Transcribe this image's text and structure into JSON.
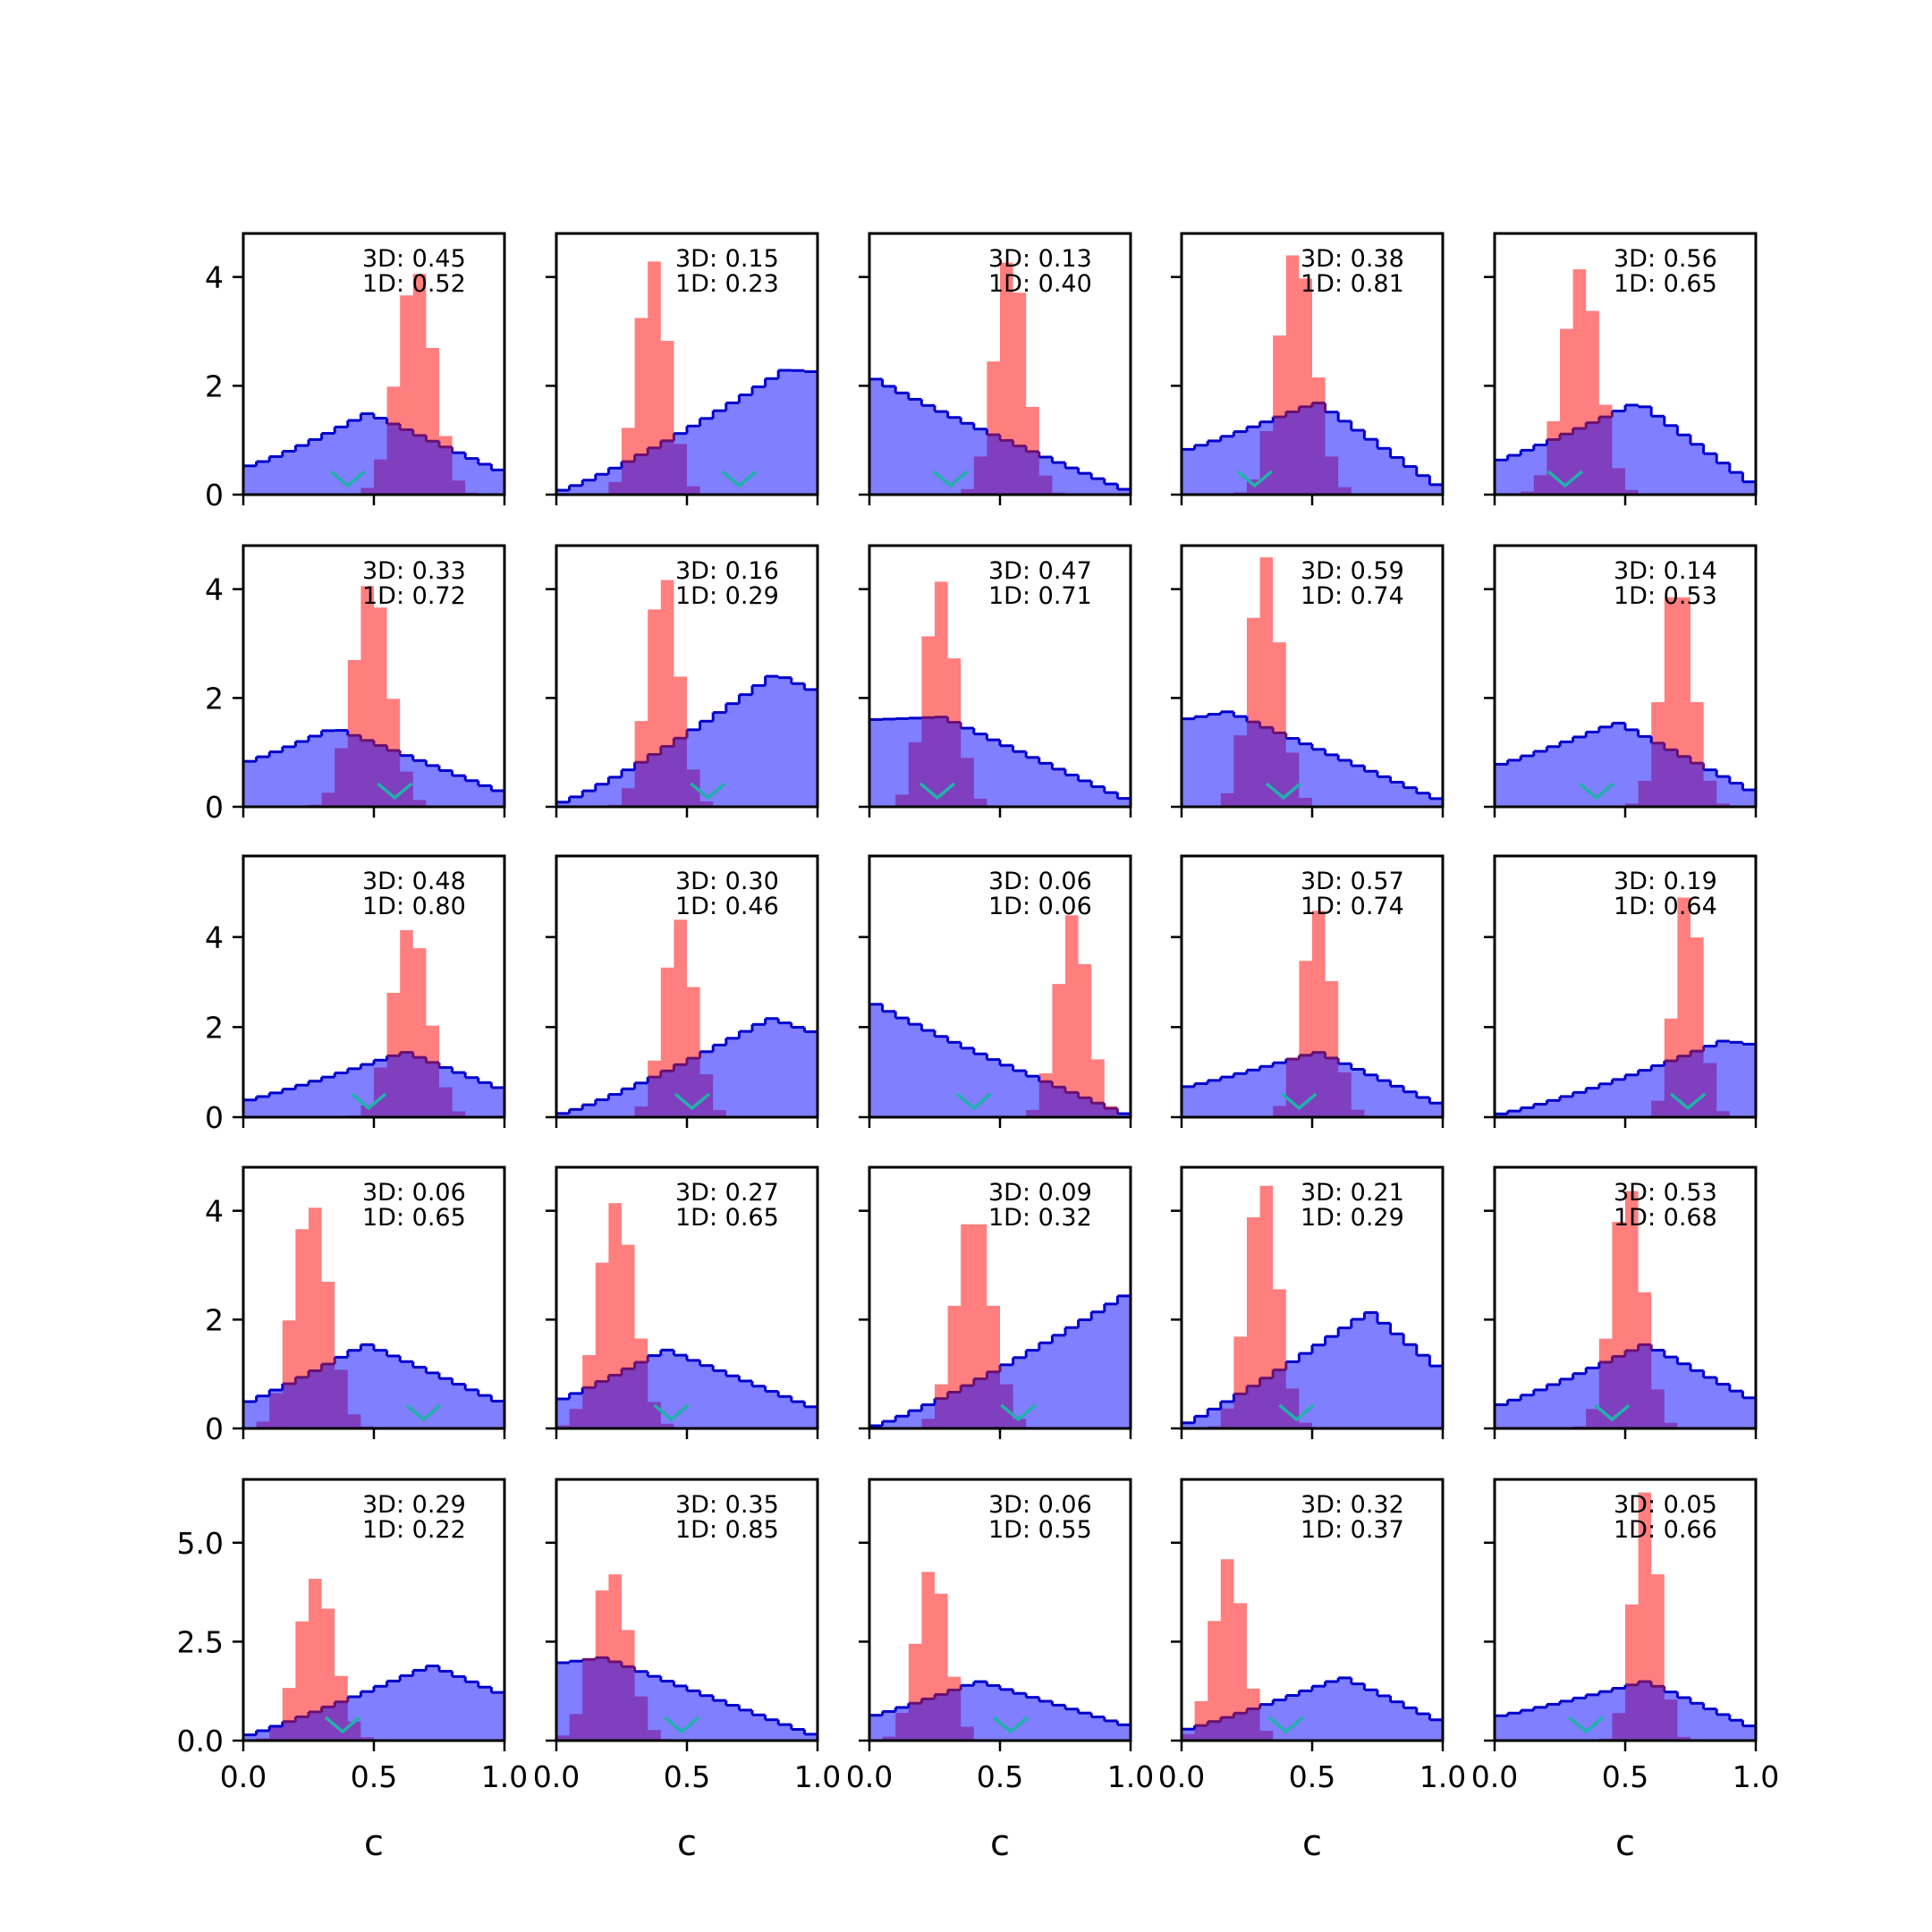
{
  "colors": {
    "hist_3d_fill": "#0000ff",
    "hist_3d_fill_opacity": 0.5,
    "hist_3d_edge": "#0000cc",
    "hist_1d_fill": "#ff0000",
    "hist_1d_fill_opacity": 0.5,
    "overlap_edge": "#6a1070",
    "marker": "#20b2aa"
  },
  "layout": {
    "rows": 5,
    "cols": 5,
    "x_tick_labels": [
      "0.0",
      "0.5",
      "1.0"
    ],
    "x_ticks": [
      0.0,
      0.5,
      1.0
    ],
    "xlabel": "c",
    "row_y_ticks": [
      {
        "ticks": [
          0,
          2,
          4
        ],
        "labels": [
          "0",
          "2",
          "4"
        ],
        "ylim": [
          0,
          4.8
        ]
      },
      {
        "ticks": [
          0,
          2,
          4
        ],
        "labels": [
          "0",
          "2",
          "4"
        ],
        "ylim": [
          0,
          4.8
        ]
      },
      {
        "ticks": [
          0,
          2,
          4
        ],
        "labels": [
          "0",
          "2",
          "4"
        ],
        "ylim": [
          0,
          5.8
        ]
      },
      {
        "ticks": [
          0,
          2,
          4
        ],
        "labels": [
          "0",
          "2",
          "4"
        ],
        "ylim": [
          0,
          4.8
        ]
      },
      {
        "ticks": [
          0.0,
          2.5,
          5.0
        ],
        "labels": [
          "0.0",
          "2.5",
          "5.0"
        ],
        "ylim": [
          0,
          6.6
        ]
      }
    ]
  },
  "chart_data": {
    "type": "histogram-grid",
    "xlim": [
      0,
      1
    ],
    "xlabel": "c",
    "panels": [
      {
        "row": 0,
        "col": 0,
        "annotation_3d": "3D: 0.45",
        "annotation_1d": "1D: 0.52",
        "wide_shape": "ramp-up",
        "wide_peak": 0.48,
        "wide_max": 1.5,
        "wide_start": 0.5,
        "wide_end": 0.4,
        "narrow_center": 0.66,
        "narrow_sd": 0.07,
        "narrow_max": 4.15,
        "marker_x": 0.4
      },
      {
        "row": 0,
        "col": 1,
        "annotation_3d": "3D: 0.15",
        "annotation_1d": "1D: 0.23",
        "wide_shape": "ramp-up",
        "wide_peak": 0.88,
        "wide_max": 2.3,
        "wide_start": 0.05,
        "wide_end": 2.25,
        "narrow_center": 0.37,
        "narrow_sd": 0.06,
        "narrow_max": 4.3,
        "marker_x": 0.7
      },
      {
        "row": 0,
        "col": 2,
        "annotation_3d": "3D: 0.13",
        "annotation_1d": "1D: 0.40",
        "wide_shape": "ramp-down",
        "wide_peak": 0.0,
        "wide_max": 2.2,
        "wide_start": 2.2,
        "wide_end": 0.05,
        "narrow_center": 0.54,
        "narrow_sd": 0.06,
        "narrow_max": 4.4,
        "marker_x": 0.31
      },
      {
        "row": 0,
        "col": 3,
        "annotation_3d": "3D: 0.38",
        "annotation_1d": "1D: 0.81",
        "wide_shape": "peak",
        "wide_peak": 0.52,
        "wide_max": 1.7,
        "wide_start": 0.8,
        "wide_end": 0.1,
        "narrow_center": 0.44,
        "narrow_sd": 0.07,
        "narrow_max": 4.5,
        "marker_x": 0.28
      },
      {
        "row": 0,
        "col": 4,
        "annotation_3d": "3D: 0.56",
        "annotation_1d": "1D: 0.65",
        "wide_shape": "peak",
        "wide_peak": 0.55,
        "wide_max": 1.7,
        "wide_start": 0.6,
        "wide_end": 0.15,
        "narrow_center": 0.33,
        "narrow_sd": 0.07,
        "narrow_max": 4.15,
        "marker_x": 0.27
      },
      {
        "row": 1,
        "col": 0,
        "annotation_3d": "3D: 0.33",
        "annotation_1d": "1D: 0.72",
        "wide_shape": "peak",
        "wide_peak": 0.35,
        "wide_max": 1.45,
        "wide_start": 0.8,
        "wide_end": 0.25,
        "narrow_center": 0.49,
        "narrow_sd": 0.07,
        "narrow_max": 4.15,
        "marker_x": 0.58
      },
      {
        "row": 1,
        "col": 1,
        "annotation_3d": "3D: 0.16",
        "annotation_1d": "1D: 0.29",
        "wide_shape": "ramp-up",
        "wide_peak": 0.84,
        "wide_max": 2.45,
        "wide_start": 0.05,
        "wide_end": 2.1,
        "narrow_center": 0.41,
        "narrow_sd": 0.06,
        "narrow_max": 4.3,
        "marker_x": 0.58
      },
      {
        "row": 1,
        "col": 2,
        "annotation_3d": "3D: 0.47",
        "annotation_1d": "1D: 0.71",
        "wide_shape": "peak",
        "wide_peak": 0.28,
        "wide_max": 1.65,
        "wide_start": 1.6,
        "wide_end": 0.1,
        "narrow_center": 0.27,
        "narrow_sd": 0.06,
        "narrow_max": 4.15,
        "marker_x": 0.26
      },
      {
        "row": 1,
        "col": 3,
        "annotation_3d": "3D: 0.59",
        "annotation_1d": "1D: 0.74",
        "wide_shape": "peak",
        "wide_peak": 0.18,
        "wide_max": 1.75,
        "wide_start": 1.6,
        "wide_end": 0.1,
        "narrow_center": 0.32,
        "narrow_sd": 0.06,
        "narrow_max": 4.6,
        "marker_x": 0.39
      },
      {
        "row": 1,
        "col": 4,
        "annotation_3d": "3D: 0.14",
        "annotation_1d": "1D: 0.53",
        "wide_shape": "peak",
        "wide_peak": 0.47,
        "wide_max": 1.55,
        "wide_start": 0.75,
        "wide_end": 0.25,
        "narrow_center": 0.7,
        "narrow_sd": 0.06,
        "narrow_max": 4.2,
        "marker_x": 0.39
      },
      {
        "row": 2,
        "col": 0,
        "annotation_3d": "3D: 0.48",
        "annotation_1d": "1D: 0.80",
        "wide_shape": "peak",
        "wide_peak": 0.62,
        "wide_max": 1.45,
        "wide_start": 0.35,
        "wide_end": 0.6,
        "narrow_center": 0.64,
        "narrow_sd": 0.07,
        "narrow_max": 4.25,
        "marker_x": 0.48
      },
      {
        "row": 2,
        "col": 1,
        "annotation_3d": "3D: 0.30",
        "annotation_1d": "1D: 0.46",
        "wide_shape": "ramp-up",
        "wide_peak": 0.82,
        "wide_max": 2.2,
        "wide_start": 0.05,
        "wide_end": 1.85,
        "narrow_center": 0.47,
        "narrow_sd": 0.06,
        "narrow_max": 4.4,
        "marker_x": 0.52
      },
      {
        "row": 2,
        "col": 2,
        "annotation_3d": "3D: 0.06",
        "annotation_1d": "1D: 0.06",
        "wide_shape": "ramp-down",
        "wide_peak": 0.0,
        "wide_max": 2.6,
        "wide_start": 2.6,
        "wide_end": 0.02,
        "narrow_center": 0.78,
        "narrow_sd": 0.06,
        "narrow_max": 4.5,
        "marker_x": 0.4
      },
      {
        "row": 2,
        "col": 3,
        "annotation_3d": "3D: 0.57",
        "annotation_1d": "1D: 0.74",
        "wide_shape": "peak",
        "wide_peak": 0.52,
        "wide_max": 1.45,
        "wide_start": 0.65,
        "wide_end": 0.25,
        "narrow_center": 0.52,
        "narrow_sd": 0.06,
        "narrow_max": 4.6,
        "marker_x": 0.45
      },
      {
        "row": 2,
        "col": 4,
        "annotation_3d": "3D: 0.19",
        "annotation_1d": "1D: 0.64",
        "wide_shape": "ramp-up",
        "wide_peak": 0.88,
        "wide_max": 1.7,
        "wide_start": 0.05,
        "wide_end": 1.6,
        "narrow_center": 0.74,
        "narrow_sd": 0.05,
        "narrow_max": 5.1,
        "marker_x": 0.74
      },
      {
        "row": 3,
        "col": 0,
        "annotation_3d": "3D: 0.06",
        "annotation_1d": "1D: 0.65",
        "wide_shape": "peak",
        "wide_peak": 0.47,
        "wide_max": 1.55,
        "wide_start": 0.45,
        "wide_end": 0.45,
        "narrow_center": 0.26,
        "narrow_sd": 0.07,
        "narrow_max": 4.15,
        "marker_x": 0.69
      },
      {
        "row": 3,
        "col": 1,
        "annotation_3d": "3D: 0.27",
        "annotation_1d": "1D: 0.65",
        "wide_shape": "peak",
        "wide_peak": 0.42,
        "wide_max": 1.45,
        "wide_start": 0.5,
        "wide_end": 0.35,
        "narrow_center": 0.23,
        "narrow_sd": 0.07,
        "narrow_max": 4.15,
        "marker_x": 0.44
      },
      {
        "row": 3,
        "col": 2,
        "annotation_3d": "3D: 0.09",
        "annotation_1d": "1D: 0.32",
        "wide_shape": "ramp-up",
        "wide_peak": 0.98,
        "wide_max": 2.45,
        "wide_start": 0.02,
        "wide_end": 2.45,
        "narrow_center": 0.4,
        "narrow_sd": 0.07,
        "narrow_max": 4.0,
        "marker_x": 0.57
      },
      {
        "row": 3,
        "col": 3,
        "annotation_3d": "3D: 0.21",
        "annotation_1d": "1D: 0.29",
        "wide_shape": "peak",
        "wide_peak": 0.72,
        "wide_max": 2.15,
        "wide_start": 0.05,
        "wide_end": 1.05,
        "narrow_center": 0.31,
        "narrow_sd": 0.06,
        "narrow_max": 4.6,
        "marker_x": 0.44
      },
      {
        "row": 3,
        "col": 4,
        "annotation_3d": "3D: 0.53",
        "annotation_1d": "1D: 0.68",
        "wide_shape": "peak",
        "wide_peak": 0.58,
        "wide_max": 1.55,
        "wide_start": 0.4,
        "wide_end": 0.5,
        "narrow_center": 0.51,
        "narrow_sd": 0.06,
        "narrow_max": 4.5,
        "marker_x": 0.45
      },
      {
        "row": 4,
        "col": 0,
        "annotation_3d": "3D: 0.29",
        "annotation_1d": "1D: 0.22",
        "wide_shape": "peak",
        "wide_peak": 0.72,
        "wide_max": 1.9,
        "wide_start": 0.1,
        "wide_end": 1.15,
        "narrow_center": 0.28,
        "narrow_sd": 0.07,
        "narrow_max": 4.1,
        "marker_x": 0.38
      },
      {
        "row": 4,
        "col": 1,
        "annotation_3d": "3D: 0.35",
        "annotation_1d": "1D: 0.85",
        "wide_shape": "peak",
        "wide_peak": 0.18,
        "wide_max": 2.1,
        "wide_start": 1.95,
        "wide_end": 0.1,
        "narrow_center": 0.21,
        "narrow_sd": 0.07,
        "narrow_max": 4.3,
        "marker_x": 0.48
      },
      {
        "row": 4,
        "col": 2,
        "annotation_3d": "3D: 0.06",
        "annotation_1d": "1D: 0.55",
        "wide_shape": "peak",
        "wide_peak": 0.42,
        "wide_max": 1.5,
        "wide_start": 0.6,
        "wide_end": 0.35,
        "narrow_center": 0.24,
        "narrow_sd": 0.06,
        "narrow_max": 4.4,
        "marker_x": 0.54
      },
      {
        "row": 4,
        "col": 3,
        "annotation_3d": "3D: 0.32",
        "annotation_1d": "1D: 0.37",
        "wide_shape": "peak",
        "wide_peak": 0.62,
        "wide_max": 1.6,
        "wide_start": 0.25,
        "wide_end": 0.45,
        "narrow_center": 0.18,
        "narrow_sd": 0.06,
        "narrow_max": 4.6,
        "marker_x": 0.4
      },
      {
        "row": 4,
        "col": 4,
        "annotation_3d": "3D: 0.05",
        "annotation_1d": "1D: 0.66",
        "wide_shape": "peak",
        "wide_peak": 0.58,
        "wide_max": 1.5,
        "wide_start": 0.6,
        "wide_end": 0.3,
        "narrow_center": 0.58,
        "narrow_sd": 0.05,
        "narrow_max": 6.3,
        "marker_x": 0.35
      }
    ]
  }
}
